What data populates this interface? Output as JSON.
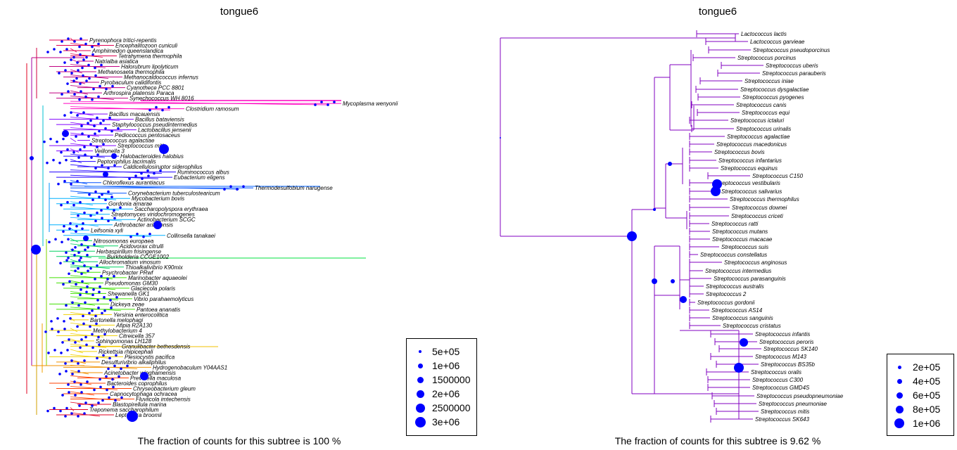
{
  "panels": [
    {
      "title": "tongue6",
      "caption": "The fraction of counts for this subtree is 100 %",
      "legend": [
        "5e+05",
        "1e+06",
        "1500000",
        "2e+06",
        "2500000",
        "3e+06"
      ],
      "visible_labels": [
        "Pyrenophora tritici-repentis",
        "Encephalitozoon cuniculi",
        "Amphimedon queenslandica",
        "Tetrahymena thermophila",
        "Natrialba asiatica",
        "Halorubrum lipolyticum",
        "Methanosaeta thermophila",
        "Methanocaldococcus infernus",
        "Pyrobaculum calidifontis",
        "Cyanothece PCC 8801",
        "Arthrospira platensis Paraca",
        "Synechococcus WH 8016",
        "Mycoplasma wenyonii",
        "Clostridium ramosum",
        "Bacillus macauensis",
        "Bacillus bataviensis",
        "Staphylococcus pseudintermedius",
        "Lactobacillus jensenii",
        "Pediococcus pentosaceus",
        "Streptococcus agalactiae",
        "Streptococcus mitis",
        "Veillonella 3",
        "Halobacteroides halobius",
        "Peptoniphilus lacrimalis",
        "Caldicellulosiruptor siderophilus",
        "Ruminococcus albus",
        "Eubacterium eligens",
        "Chloroflexus aurantiacus",
        "Thermodesulfobium narugense",
        "Corynebacterium tuberculostearicum",
        "Mycobacterium bovis",
        "Gordonia amarae",
        "Saccharopolyspora erythraea",
        "Streptomyces viridochromogenes",
        "Actinobacterium SCGC",
        "Arthrobacter arilaitensis",
        "Leifsonia xyli",
        "Collinsella tanakaei",
        "Nitrosomonas europaea",
        "Acidovorax citrulli",
        "Herbaspirillum frisingense",
        "Burkholderia CCGE1002",
        "Allochromatium vinosum",
        "Thioalkalivibrio K90mix",
        "Psychrobacter PRwf",
        "Marinobacter aquaeolei",
        "Pseudomonas GM30",
        "Glaciecola polaris",
        "Shewanella GK1",
        "Vibrio parahaemolyticus",
        "Dickeya zeae",
        "Pantoea ananatis",
        "Yersinia enterocolitica",
        "Bartonella melophagi",
        "Afipia R2A130",
        "Methylobacterium 4",
        "Citreicella 357",
        "Sphingomonas LH128",
        "Granulibacter bethesdensis",
        "Rickettsia rhipicephali",
        "Plesiocystis pacifica",
        "Desulfurivibrio alkaliphilus",
        "Hydrogenobaculum Y04AAS1",
        "Acinetobacter winghamensis",
        "Prevotella maculosa",
        "Bacteroides coprophilus",
        "Chryseobacterium gleum",
        "Capnocytophaga ochracea",
        "Fluviicola imtechensis",
        "Blastopirellula marina",
        "Treponema saccharophilum",
        "Leptospira broomii"
      ]
    },
    {
      "title": "tongue6",
      "caption": "The fraction of counts for this subtree is 9.62 %",
      "legend": [
        "2e+05",
        "4e+05",
        "6e+05",
        "8e+05",
        "1e+06"
      ],
      "visible_labels": [
        "Lactococcus lactis",
        "Lactococcus garvieae",
        "Streptococcus pseudoporcinus",
        "Streptococcus porcinus",
        "Streptococcus uberis",
        "Streptococcus parauberis",
        "Streptococcus iniae",
        "Streptococcus dysgalactiae",
        "Streptococcus pyogenes",
        "Streptococcus canis",
        "Streptococcus equi",
        "Streptococcus ictaluri",
        "Streptococcus urinalis",
        "Streptococcus agalactiae",
        "Streptococcus macedonicus",
        "Streptococcus bovis",
        "Streptococcus infantarius",
        "Streptococcus equinus",
        "Streptococcus C150",
        "Streptococcus vestibularis",
        "Streptococcus salivarius",
        "Streptococcus thermophilus",
        "Streptococcus downei",
        "Streptococcus criceti",
        "Streptococcus ratti",
        "Streptococcus mutans",
        "Streptococcus macacae",
        "Streptococcus suis",
        "Streptococcus constellatus",
        "Streptococcus anginosus",
        "Streptococcus intermedius",
        "Streptococcus parasanguinis",
        "Streptococcus australis",
        "Streptococcus 2",
        "Streptococcus gordonii",
        "Streptococcus AS14",
        "Streptococcus sanguinis",
        "Streptococcus cristatus",
        "Streptococcus infantis",
        "Streptococcus peroris",
        "Streptococcus SK140",
        "Streptococcus M143",
        "Streptococcus BS35b",
        "Streptococcus oralis",
        "Streptococcus C300",
        "Streptococcus GMD4S",
        "Streptococcus pseudopneumoniae",
        "Streptococcus pneumoniae",
        "Streptococcus mitis",
        "Streptococcus SK643"
      ]
    }
  ],
  "colors": {
    "node": "#0000ff",
    "tree_right": "#8000c0"
  }
}
